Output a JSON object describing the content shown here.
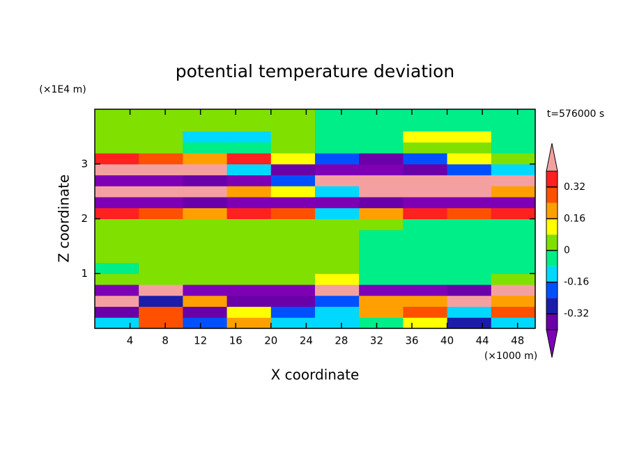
{
  "chart_data": {
    "type": "contourf",
    "title": "potential temperature deviation",
    "x_label": "X coordinate",
    "y_label": "Z coordinate",
    "x_unit": "(×1000 m)",
    "y_unit": "(×1E4 m)",
    "annotation": "t=576000 s",
    "xlim": [
      0,
      50
    ],
    "ylim": [
      0,
      4
    ],
    "xticks": [
      4,
      8,
      12,
      16,
      20,
      24,
      28,
      32,
      36,
      40,
      44,
      48
    ],
    "yticks": [
      1,
      2,
      3
    ],
    "x": [
      2.5,
      7.5,
      12.5,
      17.5,
      22.5,
      27.5,
      32.5,
      37.5,
      42.5,
      47.5
    ],
    "y": [
      0.1,
      0.3,
      0.5,
      0.7,
      0.9,
      1.1,
      1.3,
      1.5,
      1.7,
      1.9,
      2.1,
      2.3,
      2.5,
      2.7,
      2.9,
      3.1,
      3.3,
      3.5,
      3.7,
      3.9
    ],
    "values": [
      [
        -0.12,
        0.28,
        -0.2,
        0.2,
        -0.12,
        -0.12,
        -0.04,
        0.12,
        -0.28,
        -0.12
      ],
      [
        -0.36,
        0.24,
        -0.36,
        0.12,
        -0.24,
        -0.12,
        0.2,
        0.28,
        -0.12,
        0.3
      ],
      [
        0.45,
        -0.3,
        0.2,
        -0.4,
        -0.4,
        -0.2,
        0.2,
        0.2,
        0.45,
        0.2
      ],
      [
        -0.42,
        0.45,
        -0.42,
        -0.42,
        -0.42,
        0.45,
        -0.42,
        -0.42,
        -0.36,
        0.45
      ],
      [
        0.04,
        0.04,
        0.04,
        0.04,
        0.04,
        0.12,
        -0.04,
        -0.04,
        -0.04,
        0.04
      ],
      [
        -0.04,
        0.04,
        0.04,
        0.04,
        0.04,
        0.04,
        -0.04,
        -0.04,
        -0.04,
        -0.04
      ],
      [
        0.04,
        0.04,
        0.04,
        0.04,
        0.04,
        0.04,
        -0.04,
        -0.04,
        -0.04,
        -0.04
      ],
      [
        0.04,
        0.04,
        0.04,
        0.04,
        0.04,
        0.04,
        -0.04,
        -0.04,
        -0.04,
        -0.04
      ],
      [
        0.04,
        0.04,
        0.04,
        0.04,
        0.04,
        0.04,
        -0.04,
        -0.04,
        -0.04,
        -0.04
      ],
      [
        0.04,
        0.04,
        0.04,
        0.04,
        0.04,
        0.04,
        0.04,
        -0.04,
        -0.04,
        -0.04
      ],
      [
        0.35,
        0.28,
        0.2,
        0.35,
        0.28,
        -0.12,
        0.2,
        0.35,
        0.28,
        0.35
      ],
      [
        -0.42,
        -0.42,
        -0.36,
        -0.42,
        -0.42,
        -0.42,
        -0.36,
        -0.42,
        -0.42,
        -0.42
      ],
      [
        0.45,
        0.45,
        0.45,
        0.2,
        0.12,
        -0.12,
        0.45,
        0.45,
        0.45,
        0.2
      ],
      [
        -0.42,
        -0.42,
        -0.36,
        -0.42,
        -0.2,
        0.45,
        0.45,
        0.45,
        0.45,
        0.45
      ],
      [
        0.45,
        0.45,
        0.45,
        -0.12,
        -0.36,
        -0.42,
        -0.42,
        -0.36,
        -0.2,
        -0.12
      ],
      [
        0.35,
        0.28,
        0.2,
        0.35,
        0.12,
        -0.2,
        -0.36,
        -0.2,
        0.12,
        0.04
      ],
      [
        0.04,
        0.04,
        -0.04,
        -0.04,
        0.04,
        -0.04,
        -0.04,
        0.04,
        0.04,
        -0.04
      ],
      [
        0.04,
        0.04,
        -0.12,
        -0.12,
        0.04,
        -0.04,
        -0.04,
        0.12,
        0.12,
        -0.04
      ],
      [
        0.04,
        0.04,
        0.04,
        0.04,
        0.04,
        -0.04,
        -0.04,
        -0.04,
        -0.04,
        -0.04
      ],
      [
        0.04,
        0.04,
        0.04,
        0.04,
        0.04,
        -0.04,
        -0.04,
        -0.04,
        -0.04,
        -0.04
      ]
    ],
    "levels": [
      -0.4,
      -0.32,
      -0.24,
      -0.16,
      -0.08,
      0,
      0.08,
      0.16,
      0.24,
      0.32,
      0.4
    ],
    "colors": [
      "#7e00b4",
      "#6a00a8",
      "#1c1caa",
      "#0050ff",
      "#00d8ff",
      "#00ee88",
      "#80e000",
      "#ffff00",
      "#ffa000",
      "#ff5000",
      "#ff2020",
      "#f5a0a0"
    ],
    "colorbar_ticks": [
      -0.32,
      -0.16,
      0,
      0.16,
      0.32
    ]
  }
}
